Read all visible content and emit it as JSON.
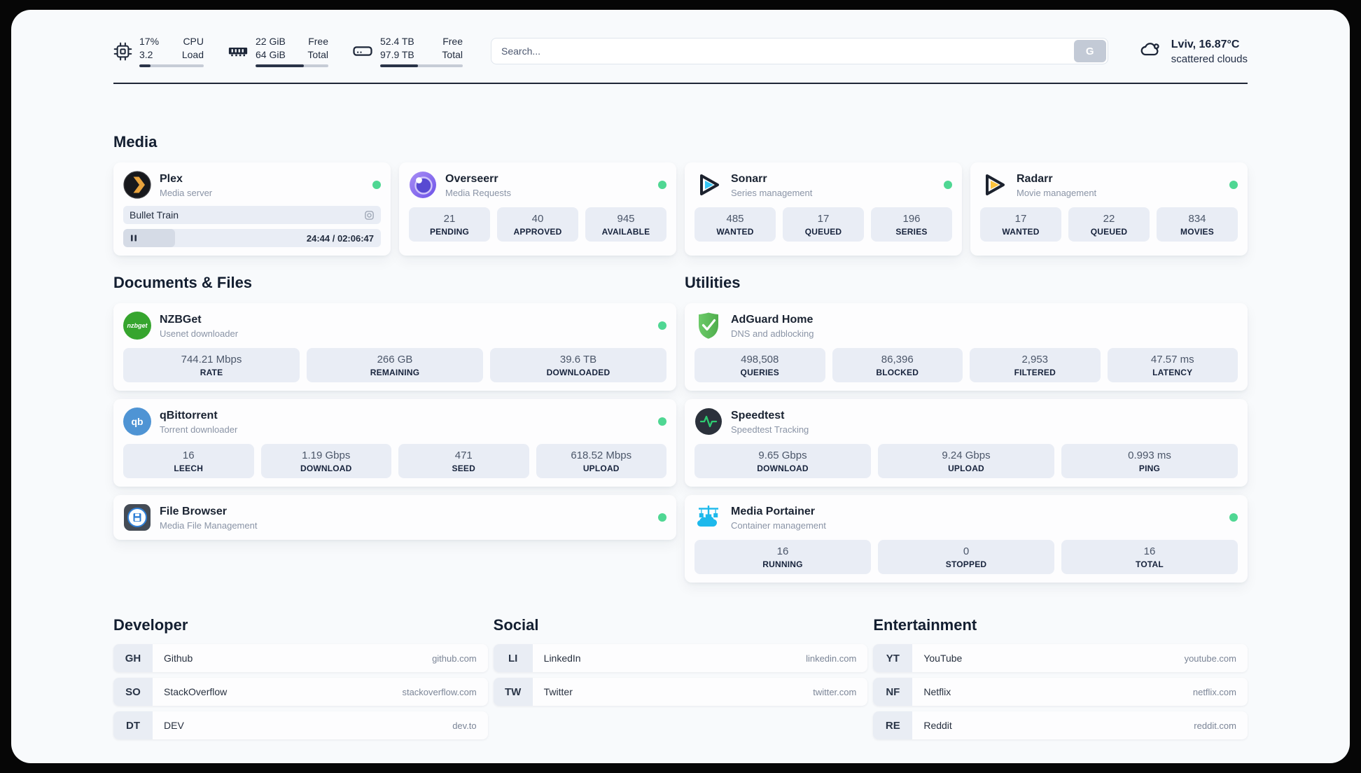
{
  "header": {
    "cpu": {
      "percent": "17%",
      "load": "3.2",
      "label_line1": "CPU",
      "label_line2": "Load",
      "progress_pct": 17
    },
    "memory": {
      "free": "22 GiB",
      "total": "64 GiB",
      "label_line1": "Free",
      "label_line2": "Total",
      "progress_pct": 66
    },
    "disk": {
      "free": "52.4 TB",
      "total": "97.9 TB",
      "label_line1": "Free",
      "label_line2": "Total",
      "progress_pct": 46
    },
    "search": {
      "placeholder": "Search...",
      "button_label": "G"
    },
    "weather": {
      "location_temp": "Lviv, 16.87°C",
      "condition": "scattered clouds"
    }
  },
  "sections": {
    "media": {
      "title": "Media",
      "apps": [
        {
          "name": "Plex",
          "subtitle": "Media server",
          "now_playing": "Bullet Train",
          "time": "24:44 / 02:06:47",
          "progress_pct": 20
        },
        {
          "name": "Overseerr",
          "subtitle": "Media Requests",
          "stats": [
            {
              "value": "21",
              "label": "PENDING"
            },
            {
              "value": "40",
              "label": "APPROVED"
            },
            {
              "value": "945",
              "label": "AVAILABLE"
            }
          ]
        },
        {
          "name": "Sonarr",
          "subtitle": "Series management",
          "stats": [
            {
              "value": "485",
              "label": "WANTED"
            },
            {
              "value": "17",
              "label": "QUEUED"
            },
            {
              "value": "196",
              "label": "SERIES"
            }
          ]
        },
        {
          "name": "Radarr",
          "subtitle": "Movie management",
          "stats": [
            {
              "value": "17",
              "label": "WANTED"
            },
            {
              "value": "22",
              "label": "QUEUED"
            },
            {
              "value": "834",
              "label": "MOVIES"
            }
          ]
        }
      ]
    },
    "documents": {
      "title": "Documents & Files",
      "apps": [
        {
          "name": "NZBGet",
          "subtitle": "Usenet downloader",
          "icon_text": "nzbget",
          "stats": [
            {
              "value": "744.21 Mbps",
              "label": "RATE"
            },
            {
              "value": "266 GB",
              "label": "REMAINING"
            },
            {
              "value": "39.6 TB",
              "label": "DOWNLOADED"
            }
          ]
        },
        {
          "name": "qBittorrent",
          "subtitle": "Torrent downloader",
          "icon_text": "qb",
          "stats": [
            {
              "value": "16",
              "label": "LEECH"
            },
            {
              "value": "1.19 Gbps",
              "label": "DOWNLOAD"
            },
            {
              "value": "471",
              "label": "SEED"
            },
            {
              "value": "618.52 Mbps",
              "label": "UPLOAD"
            }
          ]
        },
        {
          "name": "File Browser",
          "subtitle": "Media File Management"
        }
      ]
    },
    "utilities": {
      "title": "Utilities",
      "apps": [
        {
          "name": "AdGuard Home",
          "subtitle": "DNS and adblocking",
          "stats": [
            {
              "value": "498,508",
              "label": "QUERIES"
            },
            {
              "value": "86,396",
              "label": "BLOCKED"
            },
            {
              "value": "2,953",
              "label": "FILTERED"
            },
            {
              "value": "47.57 ms",
              "label": "LATENCY"
            }
          ]
        },
        {
          "name": "Speedtest",
          "subtitle": "Speedtest Tracking",
          "stats": [
            {
              "value": "9.65 Gbps",
              "label": "DOWNLOAD"
            },
            {
              "value": "9.24 Gbps",
              "label": "UPLOAD"
            },
            {
              "value": "0.993 ms",
              "label": "PING"
            }
          ]
        },
        {
          "name": "Media Portainer",
          "subtitle": "Container management",
          "stats": [
            {
              "value": "16",
              "label": "RUNNING"
            },
            {
              "value": "0",
              "label": "STOPPED"
            },
            {
              "value": "16",
              "label": "TOTAL"
            }
          ]
        }
      ]
    },
    "bookmarks": [
      {
        "title": "Developer",
        "links": [
          {
            "abbr": "GH",
            "name": "Github",
            "url": "github.com"
          },
          {
            "abbr": "SO",
            "name": "StackOverflow",
            "url": "stackoverflow.com"
          },
          {
            "abbr": "DT",
            "name": "DEV",
            "url": "dev.to"
          }
        ]
      },
      {
        "title": "Social",
        "links": [
          {
            "abbr": "LI",
            "name": "LinkedIn",
            "url": "linkedin.com"
          },
          {
            "abbr": "TW",
            "name": "Twitter",
            "url": "twitter.com"
          }
        ]
      },
      {
        "title": "Entertainment",
        "links": [
          {
            "abbr": "YT",
            "name": "YouTube",
            "url": "youtube.com"
          },
          {
            "abbr": "NF",
            "name": "Netflix",
            "url": "netflix.com"
          },
          {
            "abbr": "RE",
            "name": "Reddit",
            "url": "reddit.com"
          }
        ]
      }
    ]
  },
  "colors": {
    "status_online": "#4fd793",
    "plex_gold": "#e8a33d",
    "sonarr_cyan": "#36c6f4",
    "radarr_yellow": "#fcc23c",
    "nzbget_green": "#36a52e",
    "qbittorrent_blue": "#4f94d4",
    "adguard_green": "#57b957",
    "speedtest_green": "#2ecc71",
    "portainer_blue": "#1db9ec",
    "progress_fill": "#2a3448"
  }
}
